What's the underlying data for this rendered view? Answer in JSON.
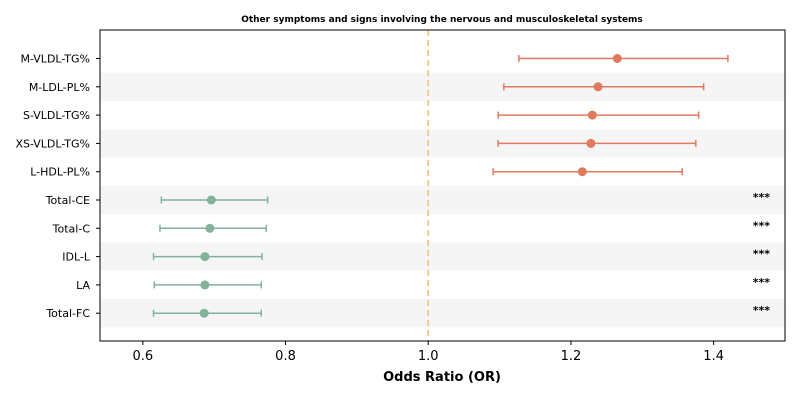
{
  "chart_data": {
    "type": "forest",
    "title": "Other symptoms and signs involving the nervous and musculoskeletal systems",
    "xlabel": "Odds Ratio (OR)",
    "xlim": [
      0.54,
      1.5
    ],
    "xticks": [
      "0.6",
      "0.8",
      "1.0",
      "1.2",
      "1.4"
    ],
    "reference_line": 1.0,
    "colors": {
      "above": "#E07A5F",
      "below": "#81B29A",
      "reference": "#F2C078",
      "band": "#f5f5f5"
    },
    "rows": [
      {
        "label": "M-VLDL-TG%",
        "or": 1.265,
        "lo": 1.127,
        "hi": 1.42,
        "sig": ""
      },
      {
        "label": "M-LDL-PL%",
        "or": 1.238,
        "lo": 1.106,
        "hi": 1.386,
        "sig": ""
      },
      {
        "label": "S-VLDL-TG%",
        "or": 1.23,
        "lo": 1.098,
        "hi": 1.379,
        "sig": ""
      },
      {
        "label": "XS-VLDL-TG%",
        "or": 1.228,
        "lo": 1.098,
        "hi": 1.375,
        "sig": ""
      },
      {
        "label": "L-HDL-PL%",
        "or": 1.216,
        "lo": 1.091,
        "hi": 1.356,
        "sig": ""
      },
      {
        "label": "Total-CE",
        "or": 0.696,
        "lo": 0.626,
        "hi": 0.775,
        "sig": "***"
      },
      {
        "label": "Total-C",
        "or": 0.694,
        "lo": 0.624,
        "hi": 0.773,
        "sig": "***"
      },
      {
        "label": "IDL-L",
        "or": 0.687,
        "lo": 0.615,
        "hi": 0.767,
        "sig": "***"
      },
      {
        "label": "LA",
        "or": 0.687,
        "lo": 0.616,
        "hi": 0.766,
        "sig": "***"
      },
      {
        "label": "Total-FC",
        "or": 0.686,
        "lo": 0.615,
        "hi": 0.766,
        "sig": "***"
      }
    ]
  }
}
